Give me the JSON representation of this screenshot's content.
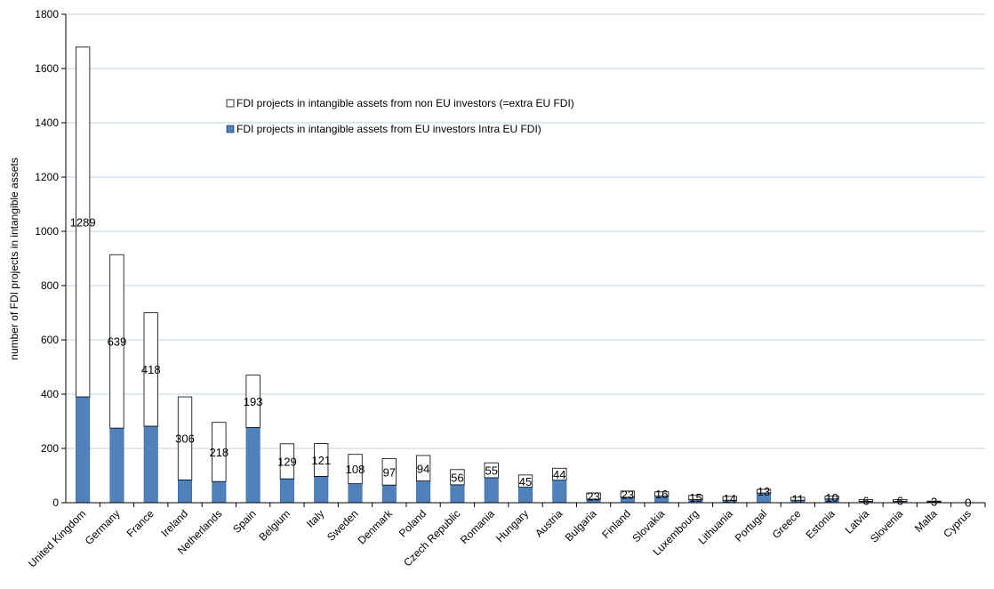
{
  "chart_data": {
    "type": "bar",
    "stacked": true,
    "title": "",
    "xlabel": "",
    "ylabel": "number of FDI projects in intangible assets",
    "ylim": [
      0,
      1800
    ],
    "yticks": [
      0,
      200,
      400,
      600,
      800,
      1000,
      1200,
      1400,
      1600,
      1800
    ],
    "grid": true,
    "legend_position": "top-center",
    "categories": [
      "United Kingdom",
      "Germany",
      "France",
      "Ireland",
      "Netherlands",
      "Spain",
      "Belgium",
      "Italy",
      "Sweden",
      "Denmark",
      "Poland",
      "Czech Republic",
      "Romania",
      "Hungary",
      "Austria",
      "Bulgaria",
      "Finland",
      "Slovakia",
      "Luxembourg",
      "Lithuania",
      "Portugal",
      "Greece",
      "Estonia",
      "Latvia",
      "Slovenia",
      "Malta",
      "Cyprus"
    ],
    "series": [
      {
        "name": "FDI projects in intangible assets from EU investors Intra EU FDI)",
        "color": "#4F81BD",
        "values": [
          390,
          275,
          282,
          84,
          78,
          277,
          88,
          97,
          70,
          65,
          80,
          66,
          92,
          57,
          83,
          13,
          20,
          24,
          12,
          9,
          36,
          9,
          14,
          5,
          5,
          3,
          1
        ]
      },
      {
        "name": "FDI projects in intangible assets from non EU investors (=extra EU FDI)",
        "color": "#FFFFFF",
        "values": [
          1289,
          639,
          418,
          306,
          218,
          193,
          129,
          121,
          108,
          97,
          94,
          56,
          55,
          45,
          44,
          23,
          23,
          16,
          15,
          14,
          13,
          11,
          10,
          6,
          6,
          3,
          0
        ]
      }
    ],
    "data_labels": [
      "1289",
      "639",
      "418",
      "306",
      "218",
      "193",
      "129",
      "121",
      "108",
      "97",
      "94",
      "56",
      "55",
      "45",
      "44",
      "23",
      "23",
      "16",
      "15",
      "14",
      "13",
      "11",
      "10",
      "6",
      "6",
      "3",
      "0"
    ]
  }
}
